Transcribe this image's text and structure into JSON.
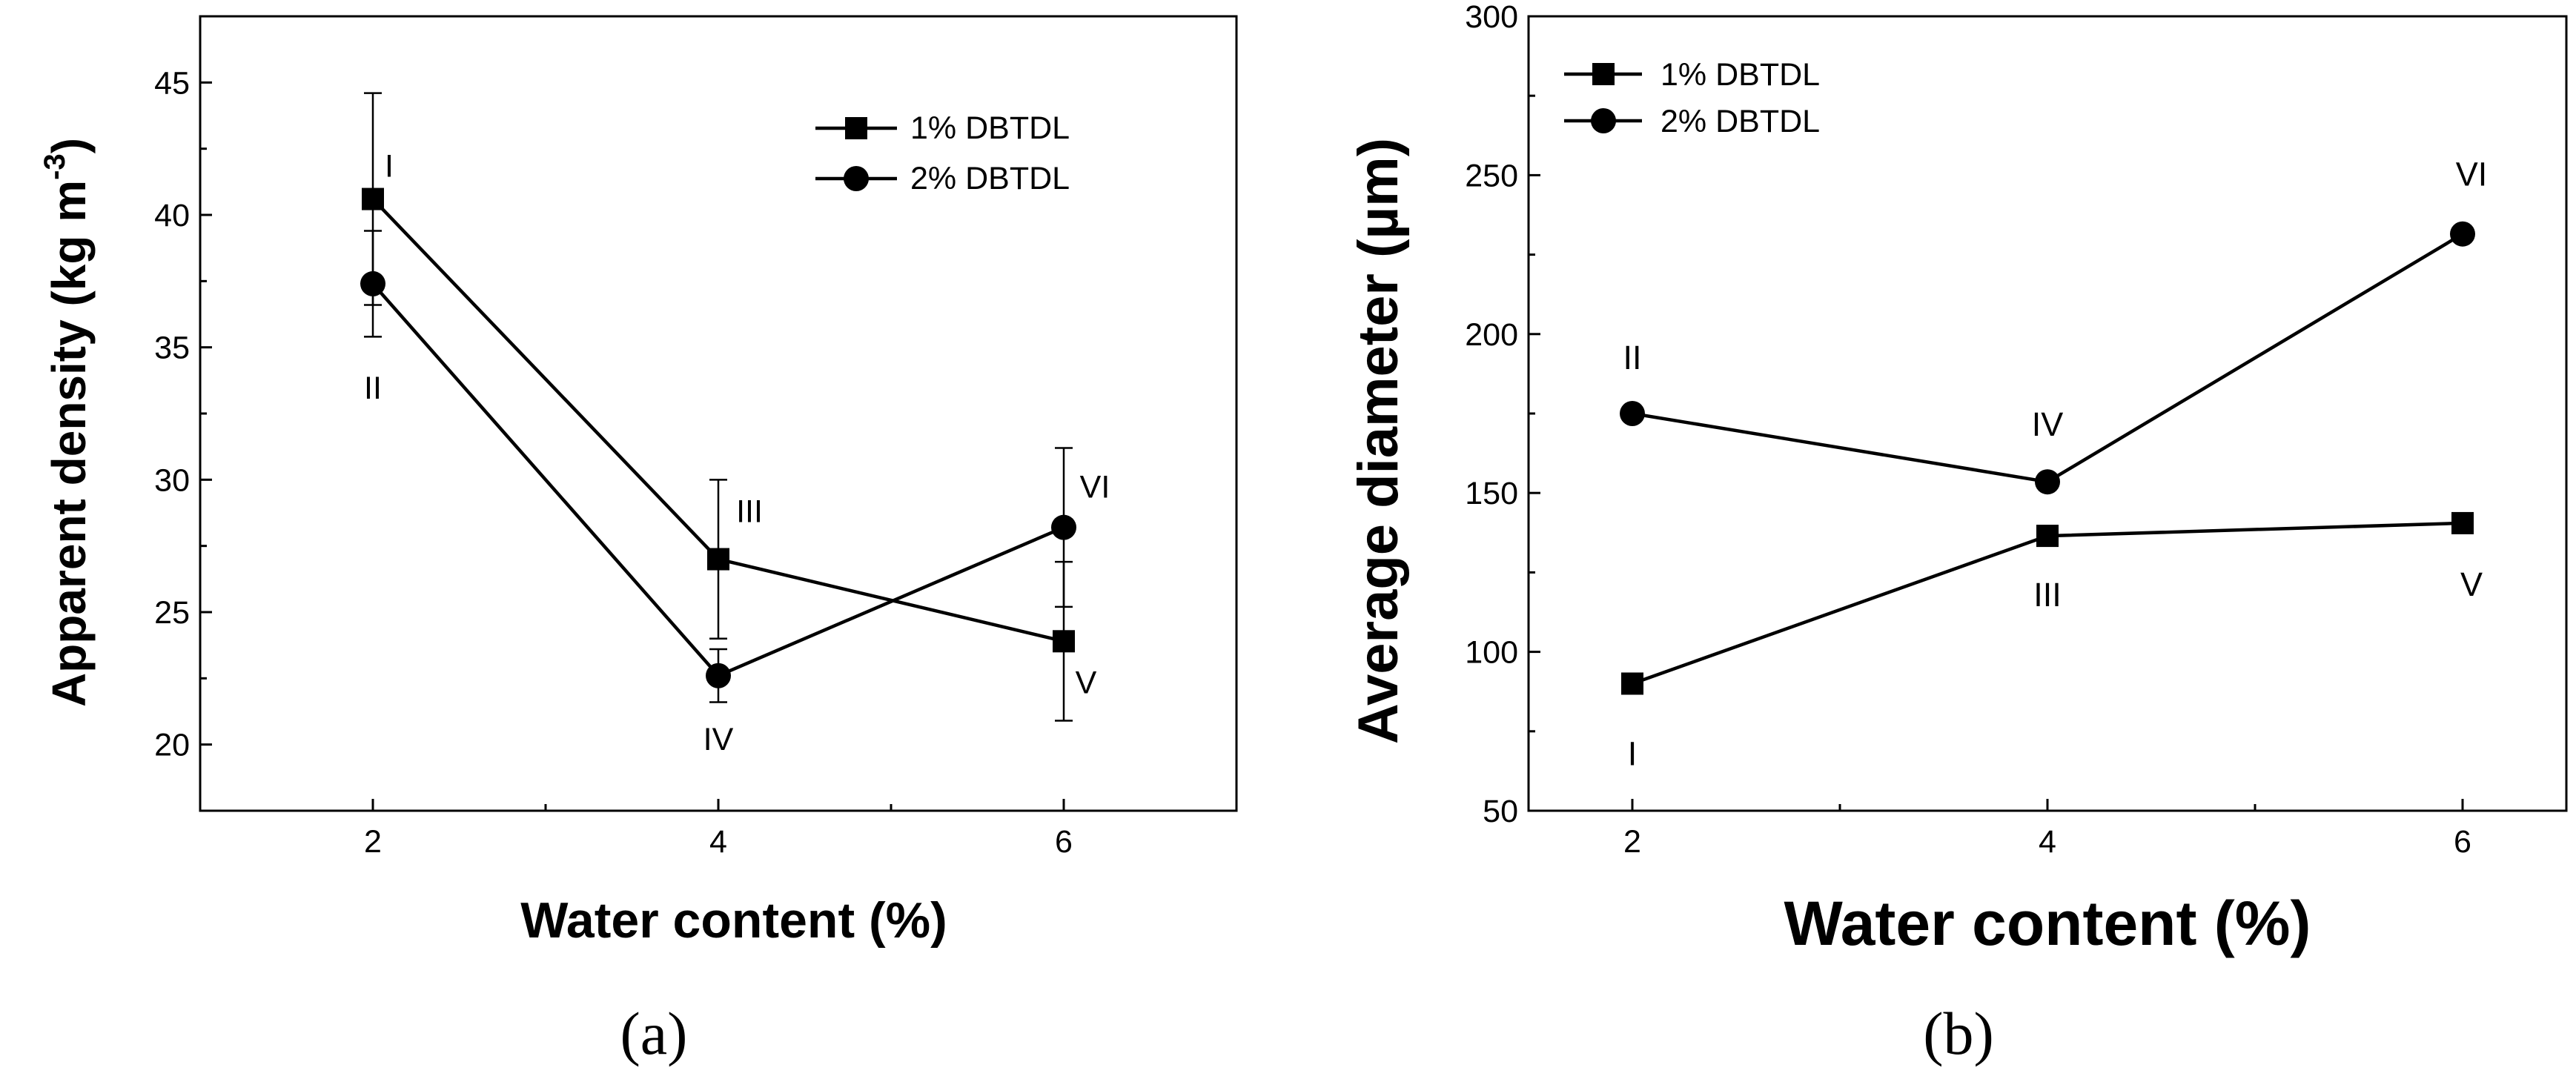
{
  "chart_data": [
    {
      "type": "line",
      "panel_label": "(a)",
      "xlabel": "Water content (%)",
      "ylabel": "Apparent density (kg m",
      "ylabel_exp": "-3",
      "ylabel_close": ")",
      "xlim": [
        1,
        7
      ],
      "ylim": [
        17.5,
        47.5
      ],
      "x_ticks": [
        2,
        4,
        6
      ],
      "x_tick_labels": [
        "2",
        "4",
        "6"
      ],
      "y_ticks": [
        20,
        25,
        30,
        35,
        40,
        45
      ],
      "y_tick_labels": [
        "20",
        "25",
        "30",
        "35",
        "40",
        "45"
      ],
      "legend_position": "top-right",
      "series": [
        {
          "name": "1% DBTDL",
          "marker": "square",
          "x": [
            2,
            4,
            6
          ],
          "values": [
            40.6,
            27.0,
            23.9
          ],
          "errors": [
            4.0,
            3.0,
            3.0
          ],
          "point_labels": [
            "I",
            "III",
            "V"
          ]
        },
        {
          "name": "2% DBTDL",
          "marker": "circle",
          "x": [
            2,
            4,
            6
          ],
          "values": [
            37.4,
            22.6,
            28.2
          ],
          "errors": [
            2.0,
            1.0,
            3.0
          ],
          "point_labels": [
            "II",
            "IV",
            "VI"
          ]
        }
      ]
    },
    {
      "type": "line",
      "panel_label": "(b)",
      "xlabel": "Water content (%)",
      "ylabel": "Average diameter (µm)",
      "xlim": [
        1.5,
        6.5
      ],
      "ylim": [
        50,
        300
      ],
      "x_ticks": [
        2,
        4,
        6
      ],
      "x_tick_labels": [
        "2",
        "4",
        "6"
      ],
      "y_ticks": [
        50,
        100,
        150,
        200,
        250,
        300
      ],
      "y_tick_labels": [
        "50",
        "100",
        "150",
        "200",
        "250",
        "300"
      ],
      "legend_position": "top-left",
      "series": [
        {
          "name": "1% DBTDL",
          "marker": "square",
          "x": [
            2,
            4,
            6
          ],
          "values": [
            90,
            136.5,
            140.5
          ],
          "point_labels": [
            "I",
            "III",
            "V"
          ]
        },
        {
          "name": "2% DBTDL",
          "marker": "circle",
          "x": [
            2,
            4,
            6
          ],
          "values": [
            175,
            153.5,
            231.5
          ],
          "point_labels": [
            "II",
            "IV",
            "VI"
          ]
        }
      ]
    }
  ]
}
